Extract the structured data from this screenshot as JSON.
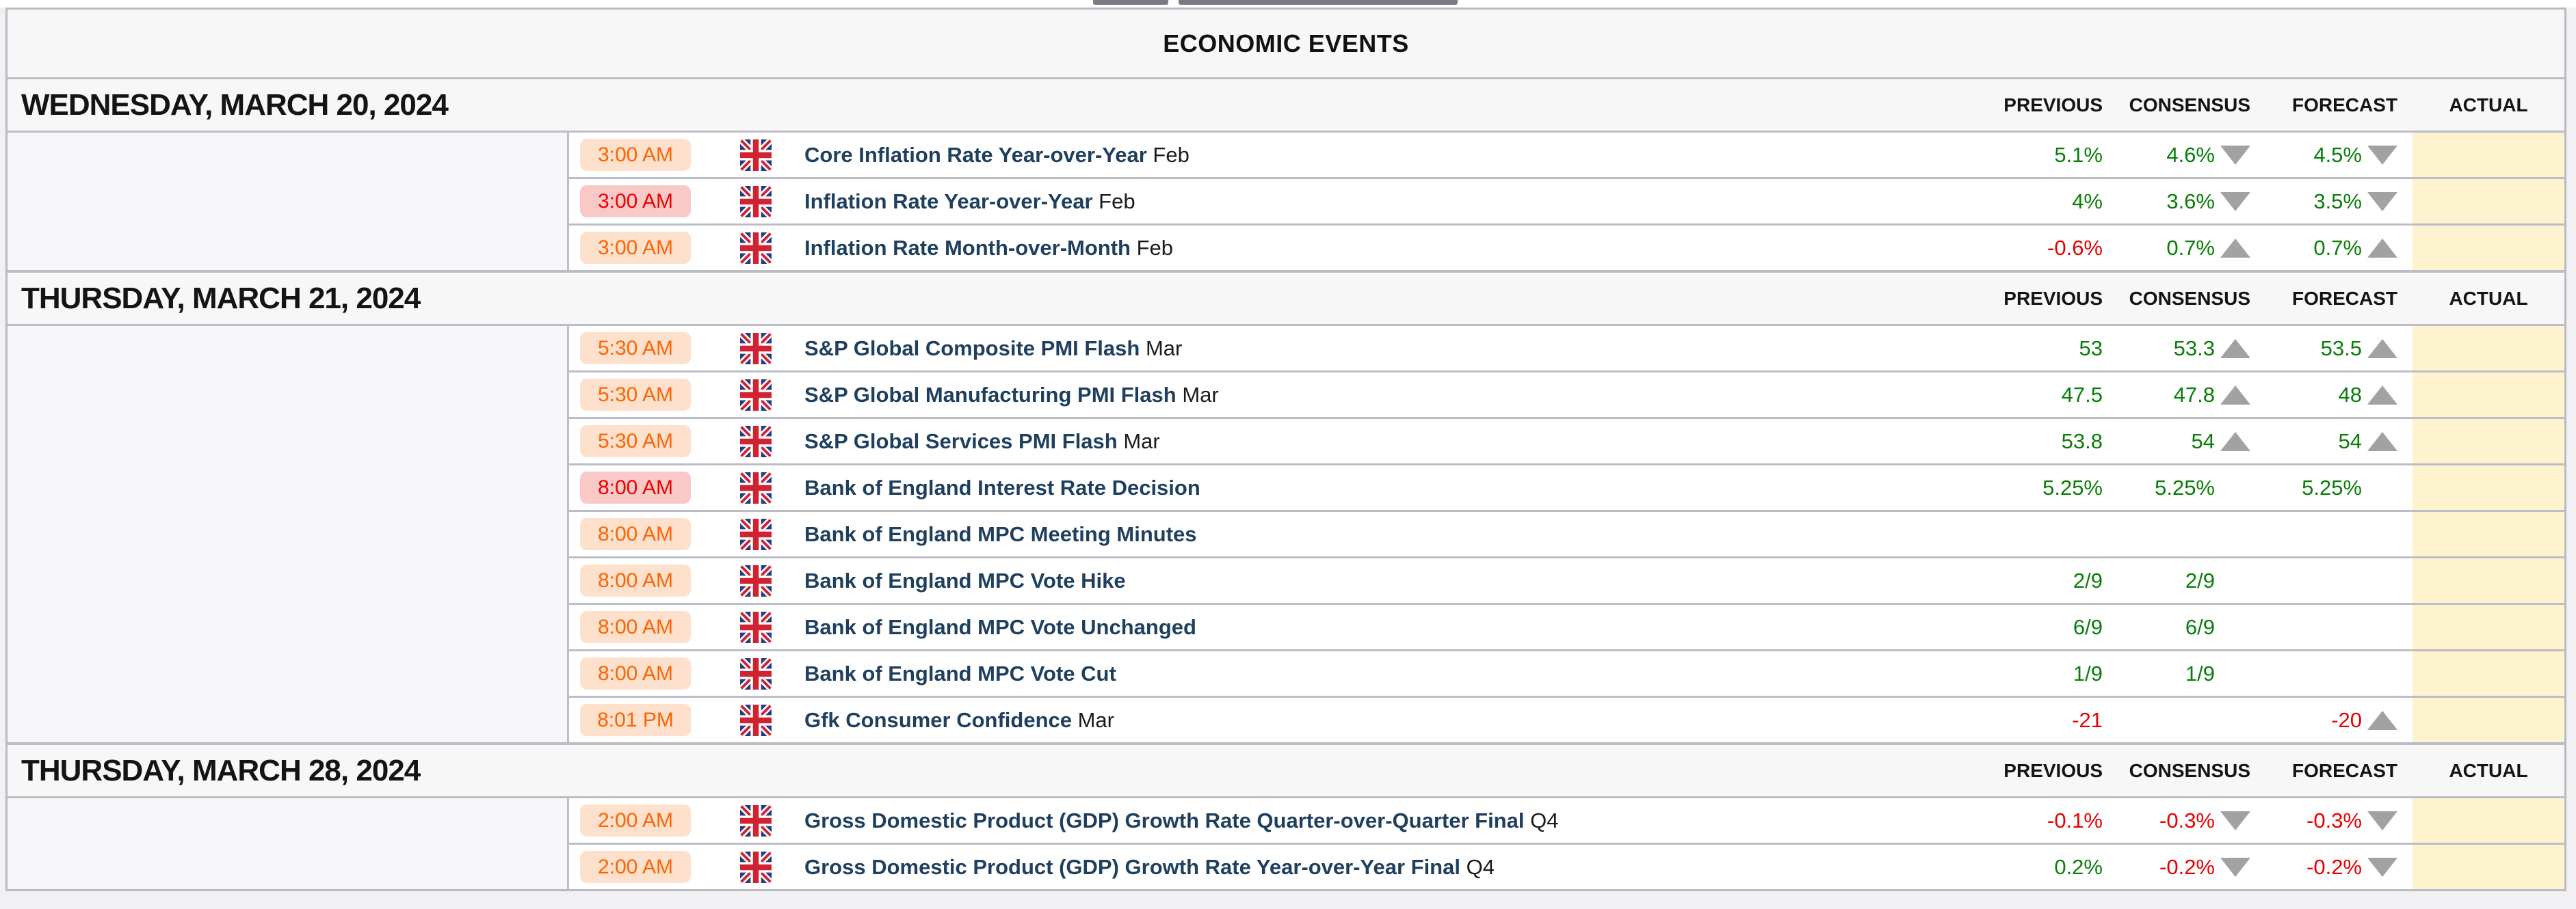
{
  "page": {
    "title": "ECONOMIC EVENTS"
  },
  "columns": {
    "previous": "PREVIOUS",
    "consensus": "CONSENSUS",
    "forecast": "FORECAST",
    "actual": "ACTUAL"
  },
  "colors": {
    "value_green": "#0a7d0a",
    "value_red": "#e80000",
    "actual_cell_yellow": "#fdf3ce",
    "badge_orange_text": "#ff6200",
    "badge_orange_bg": "#fde1cc",
    "badge_red_text": "#ed0000",
    "badge_red_bg": "#f9c9c7",
    "event_name_navy": "#1e3f5e",
    "arrow_gray": "#a2a2a2",
    "border_gray": "#bcbdc6"
  },
  "sections": [
    {
      "date": "WEDNESDAY, MARCH 20, 2024",
      "events": [
        {
          "time": "3:00 AM",
          "style": "orange",
          "country": "united-kingdom",
          "name": "Core Inflation Rate Year-over-Year",
          "period": "Feb",
          "previous": {
            "value": "5.1%",
            "color": "green"
          },
          "consensus": {
            "value": "4.6%",
            "color": "green",
            "arrow": "down"
          },
          "forecast": {
            "value": "4.5%",
            "color": "green",
            "arrow": "down"
          },
          "actual": {
            "value": ""
          }
        },
        {
          "time": "3:00 AM",
          "style": "red",
          "country": "united-kingdom",
          "name": "Inflation Rate Year-over-Year",
          "period": "Feb",
          "previous": {
            "value": "4%",
            "color": "green"
          },
          "consensus": {
            "value": "3.6%",
            "color": "green",
            "arrow": "down"
          },
          "forecast": {
            "value": "3.5%",
            "color": "green",
            "arrow": "down"
          },
          "actual": {
            "value": ""
          }
        },
        {
          "time": "3:00 AM",
          "style": "orange",
          "country": "united-kingdom",
          "name": "Inflation Rate Month-over-Month",
          "period": "Feb",
          "previous": {
            "value": "-0.6%",
            "color": "red"
          },
          "consensus": {
            "value": "0.7%",
            "color": "green",
            "arrow": "up"
          },
          "forecast": {
            "value": "0.7%",
            "color": "green",
            "arrow": "up"
          },
          "actual": {
            "value": ""
          }
        }
      ]
    },
    {
      "date": "THURSDAY, MARCH 21, 2024",
      "events": [
        {
          "time": "5:30 AM",
          "style": "orange",
          "country": "united-kingdom",
          "name": "S&P Global Composite PMI Flash",
          "period": "Mar",
          "previous": {
            "value": "53",
            "color": "green"
          },
          "consensus": {
            "value": "53.3",
            "color": "green",
            "arrow": "up"
          },
          "forecast": {
            "value": "53.5",
            "color": "green",
            "arrow": "up"
          },
          "actual": {
            "value": ""
          }
        },
        {
          "time": "5:30 AM",
          "style": "orange",
          "country": "united-kingdom",
          "name": "S&P Global Manufacturing PMI Flash",
          "period": "Mar",
          "previous": {
            "value": "47.5",
            "color": "green"
          },
          "consensus": {
            "value": "47.8",
            "color": "green",
            "arrow": "up"
          },
          "forecast": {
            "value": "48",
            "color": "green",
            "arrow": "up"
          },
          "actual": {
            "value": ""
          }
        },
        {
          "time": "5:30 AM",
          "style": "orange",
          "country": "united-kingdom",
          "name": "S&P Global Services PMI Flash",
          "period": "Mar",
          "previous": {
            "value": "53.8",
            "color": "green"
          },
          "consensus": {
            "value": "54",
            "color": "green",
            "arrow": "up"
          },
          "forecast": {
            "value": "54",
            "color": "green",
            "arrow": "up"
          },
          "actual": {
            "value": ""
          }
        },
        {
          "time": "8:00 AM",
          "style": "red",
          "country": "united-kingdom",
          "name": "Bank of England Interest Rate Decision",
          "period": "",
          "previous": {
            "value": "5.25%",
            "color": "green"
          },
          "consensus": {
            "value": "5.25%",
            "color": "green"
          },
          "forecast": {
            "value": "5.25%",
            "color": "green"
          },
          "actual": {
            "value": ""
          }
        },
        {
          "time": "8:00 AM",
          "style": "orange",
          "country": "united-kingdom",
          "name": "Bank of England MPC Meeting Minutes",
          "period": "",
          "previous": {
            "value": ""
          },
          "consensus": {
            "value": ""
          },
          "forecast": {
            "value": ""
          },
          "actual": {
            "value": ""
          }
        },
        {
          "time": "8:00 AM",
          "style": "orange",
          "country": "united-kingdom",
          "name": "Bank of England MPC Vote Hike",
          "period": "",
          "previous": {
            "value": "2/9",
            "color": "green"
          },
          "consensus": {
            "value": "2/9",
            "color": "green"
          },
          "forecast": {
            "value": ""
          },
          "actual": {
            "value": ""
          }
        },
        {
          "time": "8:00 AM",
          "style": "orange",
          "country": "united-kingdom",
          "name": "Bank of England MPC Vote Unchanged",
          "period": "",
          "previous": {
            "value": "6/9",
            "color": "green"
          },
          "consensus": {
            "value": "6/9",
            "color": "green"
          },
          "forecast": {
            "value": ""
          },
          "actual": {
            "value": ""
          }
        },
        {
          "time": "8:00 AM",
          "style": "orange",
          "country": "united-kingdom",
          "name": "Bank of England MPC Vote Cut",
          "period": "",
          "previous": {
            "value": "1/9",
            "color": "green"
          },
          "consensus": {
            "value": "1/9",
            "color": "green"
          },
          "forecast": {
            "value": ""
          },
          "actual": {
            "value": ""
          }
        },
        {
          "time": "8:01 PM",
          "style": "orange",
          "country": "united-kingdom",
          "name": "Gfk Consumer Confidence",
          "period": "Mar",
          "previous": {
            "value": "-21",
            "color": "red"
          },
          "consensus": {
            "value": ""
          },
          "forecast": {
            "value": "-20",
            "color": "red",
            "arrow": "up"
          },
          "actual": {
            "value": ""
          }
        }
      ]
    },
    {
      "date": "THURSDAY, MARCH 28, 2024",
      "events": [
        {
          "time": "2:00 AM",
          "style": "orange",
          "country": "united-kingdom",
          "name": "Gross Domestic Product (GDP) Growth Rate Quarter-over-Quarter Final",
          "period": "Q4",
          "previous": {
            "value": "-0.1%",
            "color": "red"
          },
          "consensus": {
            "value": "-0.3%",
            "color": "red",
            "arrow": "down"
          },
          "forecast": {
            "value": "-0.3%",
            "color": "red",
            "arrow": "down"
          },
          "actual": {
            "value": ""
          }
        },
        {
          "time": "2:00 AM",
          "style": "orange",
          "country": "united-kingdom",
          "name": "Gross Domestic Product (GDP) Growth Rate Year-over-Year Final",
          "period": "Q4",
          "previous": {
            "value": "0.2%",
            "color": "green"
          },
          "consensus": {
            "value": "-0.2%",
            "color": "red",
            "arrow": "down"
          },
          "forecast": {
            "value": "-0.2%",
            "color": "red",
            "arrow": "down"
          },
          "actual": {
            "value": ""
          }
        }
      ]
    }
  ]
}
